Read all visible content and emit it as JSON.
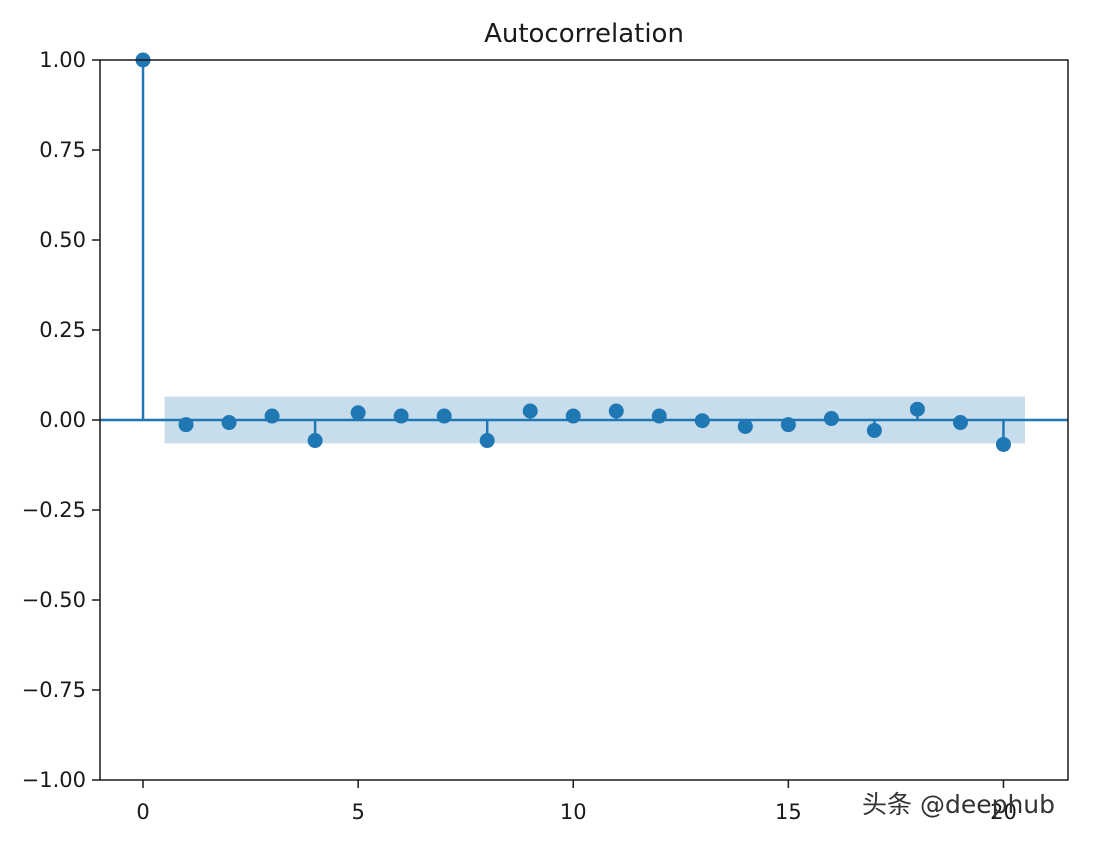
{
  "chart_data": {
    "type": "stem",
    "title": "Autocorrelation",
    "xlabel": "",
    "ylabel": "",
    "xlim": [
      -1,
      21.5
    ],
    "ylim": [
      -1.0,
      1.0
    ],
    "x_ticks": [
      0,
      5,
      10,
      15,
      20
    ],
    "x_tick_labels": [
      "0",
      "5",
      "10",
      "15",
      "20"
    ],
    "y_ticks": [
      1.0,
      0.75,
      0.5,
      0.25,
      0.0,
      -0.25,
      -0.5,
      -0.75,
      -1.0
    ],
    "y_tick_labels": [
      "1.00",
      "0.75",
      "0.50",
      "0.25",
      "0.00",
      "−0.25",
      "−0.50",
      "−0.75",
      "−1.00"
    ],
    "lags": [
      0,
      1,
      2,
      3,
      4,
      5,
      6,
      7,
      8,
      9,
      10,
      11,
      12,
      13,
      14,
      15,
      16,
      17,
      18,
      19,
      20
    ],
    "values": [
      1.0,
      -0.013,
      -0.007,
      0.011,
      -0.057,
      0.02,
      0.011,
      0.011,
      -0.057,
      0.025,
      0.011,
      0.025,
      0.011,
      -0.002,
      -0.018,
      -0.013,
      0.004,
      -0.029,
      0.03,
      -0.007,
      -0.068
    ],
    "confidence_band": {
      "lag_range": [
        0.5,
        20.5
      ],
      "lower": -0.065,
      "upper": 0.065
    },
    "grid": false,
    "colors": {
      "series": "#1f77b4",
      "band": "#1f77b4"
    }
  },
  "watermark": "头条 @deephub"
}
